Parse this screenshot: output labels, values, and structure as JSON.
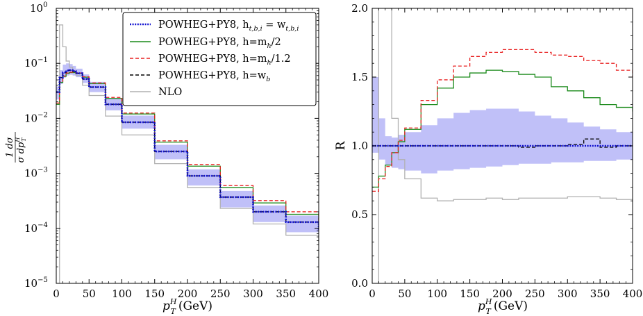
{
  "chart_data": [
    {
      "type": "line",
      "panel": "left",
      "xlabel": "p_T^H (GeV)",
      "xlabel_main": "p",
      "xlabel_sub": "T",
      "xlabel_sup": "H",
      "xlabel_unit": "(GeV)",
      "ylabel": "1/σ dσ/dp_T^H",
      "ylabel_num": "1 dσ",
      "ylabel_den": "σ dp",
      "ylabel_den_sub": "T",
      "ylabel_den_sup": "H",
      "xlim": [
        0,
        400
      ],
      "ylim": [
        1e-05,
        1
      ],
      "yscale": "log",
      "xticks": [
        0,
        50,
        100,
        150,
        200,
        250,
        300,
        350,
        400
      ],
      "xtick_labels": [
        "0",
        "50",
        "100",
        "150",
        "200",
        "250",
        "300",
        "350",
        "400"
      ],
      "yticks": [
        1e-05,
        0.0001,
        0.001,
        0.01,
        0.1,
        1
      ],
      "ytick_labels": [
        "10",
        "10",
        "10",
        "10",
        "10",
        "10"
      ],
      "ytick_exponents": [
        "−5",
        "−4",
        "−3",
        "−2",
        "−1",
        "0"
      ],
      "legend_position": "top-right",
      "legend": [
        {
          "label": "POWHEG+PY8, h",
          "label_sub": "t,b,i",
          "label_rest": " = w",
          "label_rest_sub": "t,b,i",
          "color": "#1010d0",
          "style": "dotted-thick"
        },
        {
          "label": "POWHEG+PY8, h=m",
          "label_sub": "h",
          "label_rest": "/2",
          "color": "#1a8a1a",
          "style": "solid"
        },
        {
          "label": "POWHEG+PY8, h=m",
          "label_sub": "h",
          "label_rest": "/1.2",
          "color": "#e82020",
          "style": "dashed"
        },
        {
          "label": "POWHEG+PY8, h=w",
          "label_sub": "b",
          "label_rest": "",
          "color": "#000000",
          "style": "dashed"
        },
        {
          "label": "NLO",
          "label_sub": "",
          "label_rest": "",
          "color": "#b0b0b0",
          "style": "solid"
        }
      ],
      "x": [
        0,
        5,
        10,
        15,
        20,
        25,
        30,
        40,
        50,
        75,
        100,
        150,
        200,
        250,
        300,
        350,
        400
      ],
      "series": [
        {
          "name": "POWHEG+PY8, h_{t,b,i} = w_{t,b,i}",
          "color": "#1010d0",
          "values": [
            0.03,
            0.055,
            0.068,
            0.074,
            0.075,
            0.072,
            0.066,
            0.052,
            0.037,
            0.018,
            0.0085,
            0.0025,
            0.0009,
            0.00037,
            0.0002,
            0.00013,
            9.5e-05
          ]
        },
        {
          "name": "POWHEG+PY8, h=m_h/2",
          "color": "#1a8a1a",
          "values": [
            0.018,
            0.045,
            0.058,
            0.066,
            0.068,
            0.068,
            0.066,
            0.056,
            0.043,
            0.023,
            0.012,
            0.0037,
            0.00135,
            0.00055,
            0.00029,
            0.00018,
            0.00012
          ]
        },
        {
          "name": "POWHEG+PY8, h=m_h/1.2",
          "color": "#e82020",
          "values": [
            0.019,
            0.046,
            0.059,
            0.067,
            0.069,
            0.069,
            0.067,
            0.057,
            0.044,
            0.024,
            0.0125,
            0.0039,
            0.00145,
            0.0006,
            0.00032,
            0.0002,
            0.000135
          ]
        },
        {
          "name": "POWHEG+PY8, h=w_b",
          "color": "#000000",
          "values": [
            0.03,
            0.055,
            0.068,
            0.074,
            0.075,
            0.072,
            0.066,
            0.052,
            0.037,
            0.018,
            0.0085,
            0.0025,
            0.0009,
            0.00037,
            0.0002,
            0.00013,
            9.5e-05
          ]
        },
        {
          "name": "NLO",
          "color": "#b0b0b0",
          "values": [
            1e-05,
            0.5,
            0.2,
            0.11,
            0.085,
            0.07,
            0.06,
            0.04,
            0.026,
            0.011,
            0.005,
            0.0015,
            0.00055,
            0.00023,
            0.00012,
            7.5e-05,
            5.5e-05
          ]
        }
      ],
      "band": {
        "name": "uncertainty band",
        "color": "#c0c0f8",
        "lower": [
          0.022,
          0.042,
          0.055,
          0.06,
          0.062,
          0.06,
          0.056,
          0.044,
          0.03,
          0.014,
          0.0065,
          0.0018,
          0.0006,
          0.00024,
          0.00013,
          8.5e-05,
          7e-05
        ],
        "upper": [
          0.038,
          0.075,
          0.095,
          0.1,
          0.097,
          0.09,
          0.08,
          0.063,
          0.046,
          0.023,
          0.0112,
          0.0033,
          0.00118,
          0.00048,
          0.00026,
          0.00017,
          0.00012
        ]
      }
    },
    {
      "type": "line",
      "panel": "right",
      "xlabel": "p_T^H (GeV)",
      "xlabel_main": "p",
      "xlabel_sub": "T",
      "xlabel_sup": "H",
      "xlabel_unit": "(GeV)",
      "ylabel": "R",
      "xlim": [
        0,
        400
      ],
      "ylim": [
        0,
        2
      ],
      "yscale": "linear",
      "xticks": [
        0,
        50,
        100,
        150,
        200,
        250,
        300,
        350,
        400
      ],
      "xtick_labels": [
        "0",
        "50",
        "100",
        "150",
        "200",
        "250",
        "300",
        "350",
        "400"
      ],
      "yticks": [
        0,
        0.5,
        1,
        1.5,
        2
      ],
      "ytick_labels": [
        "0.0",
        "0.5",
        "1.0",
        "1.5",
        "2.0"
      ],
      "x": [
        0,
        10,
        20,
        30,
        40,
        50,
        75,
        100,
        125,
        150,
        175,
        200,
        225,
        250,
        275,
        300,
        325,
        350,
        375,
        400
      ],
      "series": [
        {
          "name": "POWHEG+PY8, h_{t,b,i} = w_{t,b,i}",
          "color": "#1010d0",
          "values": [
            1.0,
            1.0,
            1.0,
            1.0,
            1.0,
            1.0,
            1.0,
            1.0,
            1.0,
            1.0,
            1.0,
            1.0,
            1.0,
            1.0,
            1.0,
            1.0,
            1.0,
            1.0,
            1.0,
            1.0
          ]
        },
        {
          "name": "POWHEG+PY8, h=m_h/2",
          "color": "#1a8a1a",
          "values": [
            0.7,
            0.78,
            0.86,
            0.95,
            1.03,
            1.12,
            1.3,
            1.42,
            1.5,
            1.53,
            1.55,
            1.54,
            1.52,
            1.5,
            1.43,
            1.4,
            1.35,
            1.3,
            1.28,
            1.25
          ]
        },
        {
          "name": "POWHEG+PY8, h=m_h/1.2",
          "color": "#e82020",
          "values": [
            0.67,
            0.76,
            0.85,
            0.95,
            1.04,
            1.13,
            1.33,
            1.48,
            1.58,
            1.65,
            1.68,
            1.7,
            1.7,
            1.68,
            1.66,
            1.65,
            1.62,
            1.6,
            1.55,
            1.5
          ]
        },
        {
          "name": "POWHEG+PY8, h=w_b",
          "color": "#000000",
          "values": [
            1.0,
            1.0,
            1.0,
            1.0,
            1.0,
            1.0,
            1.0,
            1.0,
            1.0,
            1.0,
            1.0,
            1.0,
            0.99,
            1.0,
            1.0,
            1.01,
            1.05,
            0.99,
            1.0,
            1.0
          ]
        },
        {
          "name": "NLO",
          "color": "#b0b0b0",
          "values": [
            0.0,
            4.0,
            2.0,
            1.2,
            0.9,
            0.76,
            0.62,
            0.6,
            0.61,
            0.61,
            0.62,
            0.61,
            0.62,
            0.62,
            0.62,
            0.63,
            0.63,
            0.62,
            0.61,
            0.59
          ]
        }
      ],
      "band": {
        "name": "uncertainty band",
        "color": "#c0c0f8",
        "lower": [
          0.95,
          0.9,
          0.86,
          0.84,
          0.83,
          0.82,
          0.8,
          0.82,
          0.83,
          0.84,
          0.85,
          0.86,
          0.87,
          0.87,
          0.88,
          0.88,
          0.89,
          0.89,
          0.9,
          0.92
        ],
        "upper": [
          1.5,
          1.2,
          1.07,
          1.06,
          1.08,
          1.1,
          1.15,
          1.2,
          1.24,
          1.26,
          1.27,
          1.27,
          1.25,
          1.22,
          1.2,
          1.17,
          1.14,
          1.12,
          1.1,
          1.08
        ]
      }
    }
  ]
}
